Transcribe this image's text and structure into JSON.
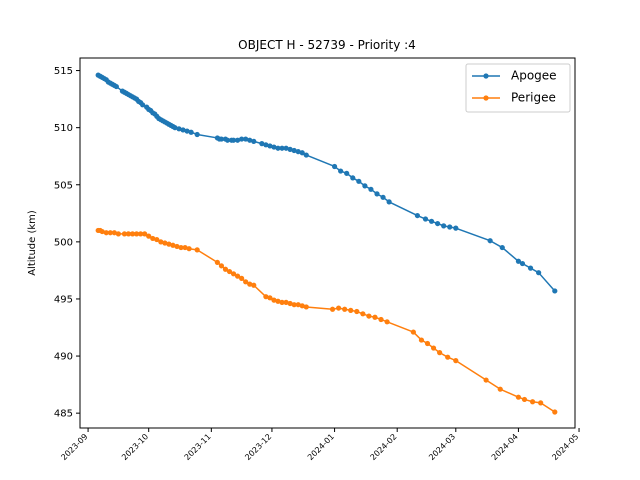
{
  "chart_data": {
    "type": "line",
    "title": "OBJECT H - 52739 - Priority :4",
    "xlabel": "",
    "ylabel": "Altitude (km)",
    "grid": false,
    "legend_position": "top-right",
    "ylim": [
      483.7,
      516.1
    ],
    "xlim": [
      "2023-08-28",
      "2024-04-29"
    ],
    "x_ticks": [
      "2023-09",
      "2023-10",
      "2023-11",
      "2023-12",
      "2024-01",
      "2024-02",
      "2024-03",
      "2024-04",
      "2024-05"
    ],
    "y_ticks": [
      485,
      490,
      495,
      500,
      505,
      510,
      515
    ],
    "series": [
      {
        "name": "Apogee",
        "color": "#1f77b4",
        "points": [
          [
            "2023-09-06",
            514.6
          ],
          [
            "2023-09-07",
            514.5
          ],
          [
            "2023-09-08",
            514.4
          ],
          [
            "2023-09-09",
            514.3
          ],
          [
            "2023-09-10",
            514.2
          ],
          [
            "2023-09-11",
            514.0
          ],
          [
            "2023-09-12",
            513.9
          ],
          [
            "2023-09-13",
            513.8
          ],
          [
            "2023-09-14",
            513.7
          ],
          [
            "2023-09-15",
            513.6
          ],
          [
            "2023-09-18",
            513.2
          ],
          [
            "2023-09-19",
            513.1
          ],
          [
            "2023-09-20",
            513.0
          ],
          [
            "2023-09-21",
            512.9
          ],
          [
            "2023-09-22",
            512.8
          ],
          [
            "2023-09-23",
            512.7
          ],
          [
            "2023-09-24",
            512.6
          ],
          [
            "2023-09-25",
            512.5
          ],
          [
            "2023-09-26",
            512.3
          ],
          [
            "2023-09-27",
            512.2
          ],
          [
            "2023-09-28",
            512.0
          ],
          [
            "2023-09-30",
            511.8
          ],
          [
            "2023-10-01",
            511.6
          ],
          [
            "2023-10-02",
            511.5
          ],
          [
            "2023-10-03",
            511.3
          ],
          [
            "2023-10-04",
            511.2
          ],
          [
            "2023-10-05",
            511.0
          ],
          [
            "2023-10-06",
            510.8
          ],
          [
            "2023-10-07",
            510.7
          ],
          [
            "2023-10-08",
            510.6
          ],
          [
            "2023-10-09",
            510.5
          ],
          [
            "2023-10-10",
            510.4
          ],
          [
            "2023-10-11",
            510.3
          ],
          [
            "2023-10-12",
            510.2
          ],
          [
            "2023-10-13",
            510.1
          ],
          [
            "2023-10-14",
            510.0
          ],
          [
            "2023-10-16",
            509.9
          ],
          [
            "2023-10-18",
            509.8
          ],
          [
            "2023-10-20",
            509.7
          ],
          [
            "2023-10-22",
            509.6
          ],
          [
            "2023-10-25",
            509.4
          ],
          [
            "2023-11-04",
            509.1
          ],
          [
            "2023-11-05",
            509.0
          ],
          [
            "2023-11-06",
            509.0
          ],
          [
            "2023-11-08",
            509.0
          ],
          [
            "2023-11-09",
            508.9
          ],
          [
            "2023-11-11",
            508.9
          ],
          [
            "2023-11-12",
            508.9
          ],
          [
            "2023-11-14",
            508.9
          ],
          [
            "2023-11-16",
            509.0
          ],
          [
            "2023-11-18",
            509.0
          ],
          [
            "2023-11-20",
            508.9
          ],
          [
            "2023-11-22",
            508.8
          ],
          [
            "2023-11-26",
            508.6
          ],
          [
            "2023-11-28",
            508.5
          ],
          [
            "2023-11-30",
            508.4
          ],
          [
            "2023-12-02",
            508.3
          ],
          [
            "2023-12-04",
            508.2
          ],
          [
            "2023-12-06",
            508.2
          ],
          [
            "2023-12-08",
            508.2
          ],
          [
            "2023-12-10",
            508.1
          ],
          [
            "2023-12-12",
            508.0
          ],
          [
            "2023-12-14",
            507.9
          ],
          [
            "2023-12-16",
            507.8
          ],
          [
            "2023-12-18",
            507.6
          ],
          [
            "2024-01-01",
            506.6
          ],
          [
            "2024-01-04",
            506.2
          ],
          [
            "2024-01-07",
            506.0
          ],
          [
            "2024-01-10",
            505.6
          ],
          [
            "2024-01-13",
            505.3
          ],
          [
            "2024-01-16",
            504.9
          ],
          [
            "2024-01-19",
            504.6
          ],
          [
            "2024-01-22",
            504.2
          ],
          [
            "2024-01-25",
            503.9
          ],
          [
            "2024-01-28",
            503.5
          ],
          [
            "2024-02-11",
            502.3
          ],
          [
            "2024-02-15",
            502.0
          ],
          [
            "2024-02-18",
            501.8
          ],
          [
            "2024-02-21",
            501.6
          ],
          [
            "2024-02-24",
            501.4
          ],
          [
            "2024-02-27",
            501.3
          ],
          [
            "2024-03-01",
            501.2
          ],
          [
            "2024-03-18",
            500.1
          ],
          [
            "2024-03-24",
            499.5
          ],
          [
            "2024-04-01",
            498.3
          ],
          [
            "2024-04-03",
            498.1
          ],
          [
            "2024-04-07",
            497.7
          ],
          [
            "2024-04-11",
            497.3
          ],
          [
            "2024-04-19",
            495.7
          ]
        ]
      },
      {
        "name": "Perigee",
        "color": "#ff7f0e",
        "points": [
          [
            "2023-09-06",
            501.0
          ],
          [
            "2023-09-07",
            501.0
          ],
          [
            "2023-09-08",
            500.9
          ],
          [
            "2023-09-10",
            500.8
          ],
          [
            "2023-09-12",
            500.8
          ],
          [
            "2023-09-14",
            500.8
          ],
          [
            "2023-09-16",
            500.7
          ],
          [
            "2023-09-19",
            500.7
          ],
          [
            "2023-09-21",
            500.7
          ],
          [
            "2023-09-23",
            500.7
          ],
          [
            "2023-09-25",
            500.7
          ],
          [
            "2023-09-27",
            500.7
          ],
          [
            "2023-09-29",
            500.7
          ],
          [
            "2023-10-01",
            500.5
          ],
          [
            "2023-10-03",
            500.3
          ],
          [
            "2023-10-05",
            500.2
          ],
          [
            "2023-10-07",
            500.0
          ],
          [
            "2023-10-09",
            499.9
          ],
          [
            "2023-10-11",
            499.8
          ],
          [
            "2023-10-13",
            499.7
          ],
          [
            "2023-10-15",
            499.6
          ],
          [
            "2023-10-17",
            499.5
          ],
          [
            "2023-10-19",
            499.5
          ],
          [
            "2023-10-21",
            499.4
          ],
          [
            "2023-10-25",
            499.3
          ],
          [
            "2023-11-04",
            498.2
          ],
          [
            "2023-11-06",
            497.9
          ],
          [
            "2023-11-08",
            497.6
          ],
          [
            "2023-11-10",
            497.4
          ],
          [
            "2023-11-12",
            497.2
          ],
          [
            "2023-11-14",
            497.0
          ],
          [
            "2023-11-16",
            496.8
          ],
          [
            "2023-11-18",
            496.5
          ],
          [
            "2023-11-20",
            496.3
          ],
          [
            "2023-11-22",
            496.2
          ],
          [
            "2023-11-28",
            495.2
          ],
          [
            "2023-11-30",
            495.1
          ],
          [
            "2023-12-02",
            494.9
          ],
          [
            "2023-12-04",
            494.8
          ],
          [
            "2023-12-06",
            494.7
          ],
          [
            "2023-12-08",
            494.7
          ],
          [
            "2023-12-10",
            494.6
          ],
          [
            "2023-12-12",
            494.5
          ],
          [
            "2023-12-14",
            494.5
          ],
          [
            "2023-12-16",
            494.4
          ],
          [
            "2023-12-18",
            494.3
          ],
          [
            "2023-12-31",
            494.1
          ],
          [
            "2024-01-03",
            494.2
          ],
          [
            "2024-01-06",
            494.1
          ],
          [
            "2024-01-09",
            494.0
          ],
          [
            "2024-01-12",
            493.9
          ],
          [
            "2024-01-15",
            493.7
          ],
          [
            "2024-01-18",
            493.5
          ],
          [
            "2024-01-21",
            493.4
          ],
          [
            "2024-01-24",
            493.2
          ],
          [
            "2024-01-27",
            493.0
          ],
          [
            "2024-02-09",
            492.1
          ],
          [
            "2024-02-13",
            491.4
          ],
          [
            "2024-02-16",
            491.1
          ],
          [
            "2024-02-19",
            490.7
          ],
          [
            "2024-02-22",
            490.3
          ],
          [
            "2024-02-26",
            489.9
          ],
          [
            "2024-03-01",
            489.6
          ],
          [
            "2024-03-16",
            487.9
          ],
          [
            "2024-03-23",
            487.1
          ],
          [
            "2024-04-01",
            486.4
          ],
          [
            "2024-04-04",
            486.2
          ],
          [
            "2024-04-08",
            486.0
          ],
          [
            "2024-04-12",
            485.9
          ],
          [
            "2024-04-19",
            485.1
          ]
        ]
      }
    ]
  }
}
